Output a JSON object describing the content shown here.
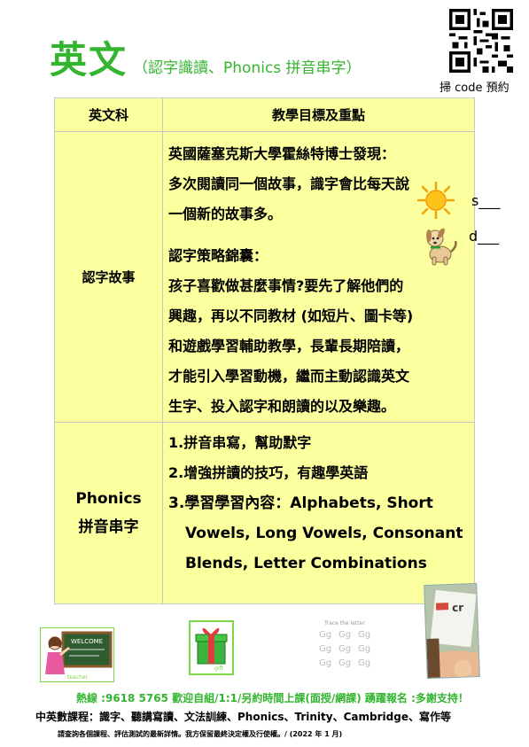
{
  "header": {
    "title": "英文",
    "subtitle": "（認字識讀、Phonics 拼音串字）",
    "qr_caption": "掃 code 預約"
  },
  "table": {
    "col_headers": [
      "英文科",
      "教學目標及重點"
    ],
    "rows": [
      {
        "label": "認字故事",
        "lines": [
          "英國薩塞克斯大學霍絲特博士發現：",
          "多次閱讀同一個故事，識字會比每天說",
          "一個新的故事多。",
          "認字策略錦囊：",
          "孩子喜歡做甚麼事情?要先了解他們的",
          "興趣，再以不同教材  (如短片、圖卡等)",
          "和遊戲學習輔助教學，長輩長期陪讀，",
          "才能引入學習動機，繼而主動認識英文",
          "生字、投入認字和朗讀的以及樂趣。"
        ],
        "blanks": [
          "s___",
          "d___"
        ]
      },
      {
        "label_line1": "Phonics",
        "label_line2": "拼音串字",
        "lines": [
          "1.拼音串寫，幫助默字",
          "2.增強拼讀的技巧，有趣學英語",
          "3.學習學習內容：Alphabets, Short",
          "Vowels, Long Vowels, Consonant",
          "Blends, Letter Combinations"
        ]
      }
    ]
  },
  "images": {
    "teacher_board_text": "WELCOME",
    "teacher_caption": "teacher",
    "gift_caption": "gift",
    "trace_title": "Trace the letter",
    "trace_letters": [
      "Gg",
      "Gg",
      "Gg"
    ],
    "photo_text": "cr"
  },
  "footer": {
    "hotline": "熱線 :9618 5765    歡迎自組/1:1/另約時間上課(面授/網課)     踴躍報名 :多謝支持！",
    "courses": "中英數課程：識字、聽講寫讀、文法訓練、Phonics、Trinity、Cambridge、寫作等",
    "footnote": "請查詢各個課程、評估測試的最新詳情。我方保留最終決定權及行使權。/ (2022 年 1 月)"
  },
  "colors": {
    "title_green": "#33b52f",
    "table_bg": "#fbff9e",
    "frame_green": "#7cd74b"
  }
}
